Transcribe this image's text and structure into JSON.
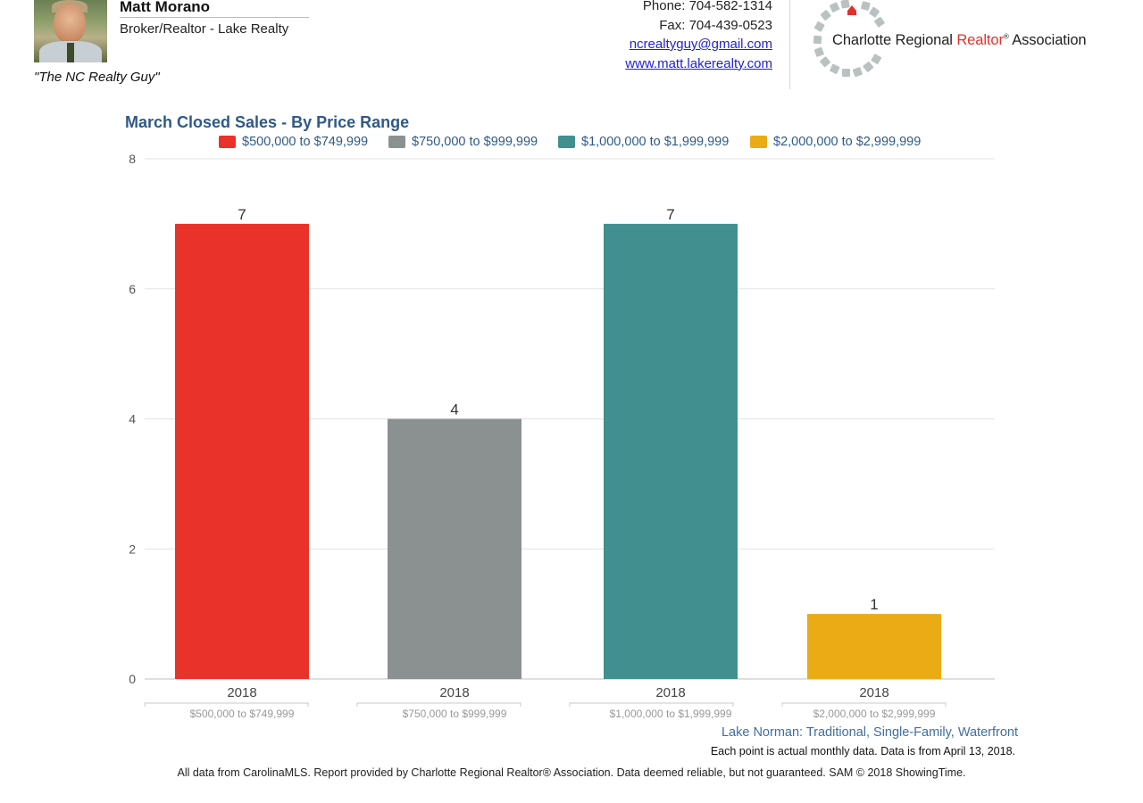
{
  "header": {
    "agent_name": "Matt Morano",
    "agent_title": "Broker/Realtor - Lake Realty",
    "tagline": "\"The NC Realty Guy\"",
    "phone": "Phone: 704-582-1314",
    "fax": "Fax: 704-439-0523",
    "email": "ncrealtyguy@gmail.com",
    "website": "www.matt.lakerealty.com",
    "logo": {
      "part1": "Charlotte Regional ",
      "part2": "Realtor",
      "reg_mark": "®",
      "part3": " Association"
    }
  },
  "colors": {
    "red": "#e8322a",
    "gray": "#8b9190",
    "teal": "#418f8f",
    "gold": "#ebab14",
    "title_blue": "#2f5a86"
  },
  "chart_data": {
    "type": "bar",
    "title": "March Closed Sales - By Price Range",
    "ylim": [
      0,
      8
    ],
    "yticks": [
      0,
      2,
      4,
      6,
      8
    ],
    "grid": true,
    "legend_position": "top-center",
    "series": [
      {
        "name": "$500,000 to $749,999",
        "category": "2018",
        "value": 7,
        "color": "#e8322a"
      },
      {
        "name": "$750,000 to $999,999",
        "category": "2018",
        "value": 4,
        "color": "#8b9190"
      },
      {
        "name": "$1,000,000 to $1,999,999",
        "category": "2018",
        "value": 7,
        "color": "#418f8f"
      },
      {
        "name": "$2,000,000 to $2,999,999",
        "category": "2018",
        "value": 1,
        "color": "#ebab14"
      }
    ]
  },
  "notes": {
    "area": "Lake Norman: Traditional, Single-Family, Waterfront",
    "data_note": "Each point is actual monthly data. Data is from April 13, 2018.",
    "footer": "All data from CarolinaMLS. Report provided by Charlotte Regional Realtor® Association. Data deemed reliable, but not guaranteed. SAM © 2018 ShowingTime."
  }
}
